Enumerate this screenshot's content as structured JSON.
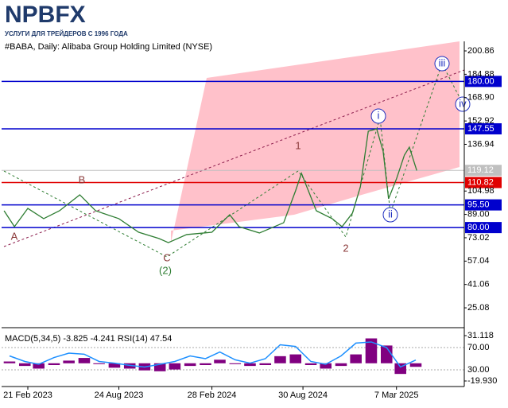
{
  "header": {
    "logo": "NPBFX",
    "tagline": "УСЛУГИ ДЛЯ ТРЕЙДЕРОВ С 1996 ГОДА"
  },
  "chart_data": [
    {
      "type": "line",
      "title": "#BABA, Daily:  Alibaba Group Holding Limited (NYSE)",
      "x": [
        "4 Jan 2023",
        "25 Jan 2023",
        "21 Feb 2023",
        "25 Mar 2023",
        "26 Apr 2023",
        "6 Jun 2023",
        "8 Jul 2023",
        "24 Aug 2023",
        "3 Oct 2023",
        "13 Nov 2023",
        "2 Dec 2023",
        "8 Jan 2024",
        "28 Feb 2024",
        "4 Apr 2024",
        "23 Apr 2024",
        "3 Jun 2024",
        "22 Jul 2024",
        "15 Aug 2024",
        "27 Aug 2024",
        "26 Sep 2024",
        "28 Oct 2024",
        "17 Nov 2024",
        "8 Dec 2024",
        "24 Dec 2024",
        "9 Jan 2025",
        "26 Jan 2025",
        "8 Feb 2025",
        "19 Feb 2025",
        "7 Mar 2025",
        "23 Mar 2025",
        "2 Apr 2025",
        "17 Apr 2025"
      ],
      "series": [
        {
          "color": "#2e7d32",
          "values": [
            91.5,
            80.6,
            93.1,
            86.1,
            91.5,
            102.4,
            91.5,
            86.1,
            76.8,
            72.5,
            69.7,
            75.2,
            76.8,
            88.8,
            80.6,
            76.3,
            83.3,
            105.1,
            117.1,
            91.5,
            86.1,
            80.6,
            89.9,
            107.8,
            145.9,
            147.5,
            132.3,
            99.7,
            113.3,
            129.6,
            135.0,
            119.0
          ]
        }
      ],
      "xlim": [
        "30 Dec 2022",
        "22 Jul 2025"
      ],
      "xticks": [
        "21 Feb 2023",
        "24 Aug 2023",
        "28 Feb 2024",
        "30 Aug 2024",
        "7 Mar 2025"
      ],
      "ylim": [
        11.5,
        207.4
      ],
      "yticks": [
        200.86,
        184.88,
        {
          "value": 168.9,
          "label": "168.90"
        },
        152.92,
        136.94,
        104.98,
        {
          "value": 89,
          "label": "89.00"
        },
        73.02,
        57.04,
        41.06,
        25.08
      ],
      "levels": [
        {
          "value": 180,
          "label": "180.00",
          "color": "#0000cd"
        },
        {
          "value": 147.55,
          "label": "147.55",
          "color": "#0000cd"
        },
        {
          "value": 110.82,
          "label": "110.82",
          "color": "#e00000"
        },
        {
          "value": 95.5,
          "label": "95.50",
          "color": "#0000cd"
        },
        {
          "value": 80,
          "label": "80.00",
          "color": "#0000cd"
        }
      ],
      "last_price": 119.12,
      "annotations": [
        "A",
        "B",
        "C",
        "(2)",
        "1",
        "2",
        "i",
        "ii",
        "iii",
        "iv"
      ]
    },
    {
      "type": "indicator",
      "title": "MACD(5,34,5) -3.825 -4.241 RSI(14) 47.54",
      "x": [
        "15 Jan 2023",
        "15 Feb 2023",
        "15 Mar 2023",
        "15 Apr 2023",
        "15 May 2023",
        "15 Jun 2023",
        "15 Jul 2023",
        "15 Aug 2023",
        "15 Sep 2023",
        "15 Oct 2023",
        "15 Nov 2023",
        "15 Dec 2023",
        "15 Jan 2024",
        "15 Feb 2024",
        "15 Mar 2024",
        "15 Apr 2024",
        "15 May 2024",
        "15 Jun 2024",
        "15 Jul 2024",
        "15 Aug 2024",
        "15 Sep 2024",
        "15 Oct 2024",
        "15 Nov 2024",
        "15 Dec 2024",
        "15 Jan 2025",
        "15 Feb 2025",
        "15 Mar 2025",
        "15 Apr 2025"
      ],
      "series": [
        {
          "color": "#800080",
          "values": [
            2,
            -3,
            -6,
            -2,
            3,
            6,
            -1,
            -5,
            -6,
            -8,
            -9,
            -7,
            -3,
            -2,
            4,
            -1,
            -3,
            -2,
            8,
            10,
            -2,
            -6,
            -3,
            10,
            28,
            20,
            -12,
            -4
          ]
        },
        {
          "color": "#1e90ff",
          "axis": "y2",
          "values": [
            55,
            45,
            40,
            52,
            60,
            58,
            45,
            42,
            38,
            35,
            40,
            45,
            55,
            50,
            62,
            48,
            42,
            50,
            75,
            72,
            45,
            40,
            55,
            78,
            80,
            70,
            35,
            47.54
          ]
        }
      ],
      "ylim": [
        -22.6,
        37.4
      ],
      "yticks": [
        31.118,
        {
          "value": -19.93,
          "label": "-19.930"
        }
      ],
      "y2lim": [
        5.7,
        101.4
      ],
      "y2ticks": [
        {
          "value": 70,
          "label": "70.00"
        },
        {
          "value": 30,
          "label": "30.00"
        }
      ]
    }
  ]
}
